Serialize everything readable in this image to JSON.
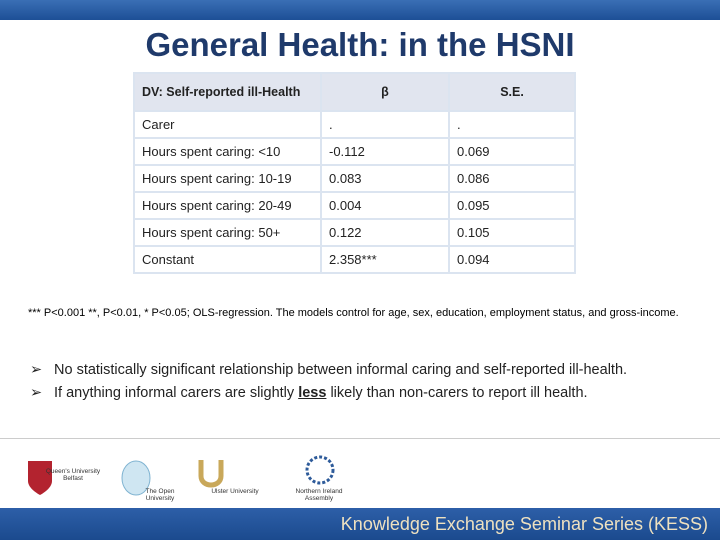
{
  "header": {
    "title": "General Health: in the HSNI"
  },
  "table": {
    "columns": [
      "DV: Self-reported ill-Health",
      "β",
      "S.E."
    ],
    "rows": [
      [
        "Carer",
        ".",
        "."
      ],
      [
        "Hours spent caring: <10",
        "-0.112",
        "0.069"
      ],
      [
        "Hours spent caring: 10-19",
        "0.083",
        "0.086"
      ],
      [
        "Hours spent caring: 20-49",
        "0.004",
        "0.095"
      ],
      [
        "Hours spent caring: 50+",
        "0.122",
        "0.105"
      ],
      [
        "Constant",
        "2.358***",
        "0.094"
      ]
    ]
  },
  "footnote": "*** P<0.001 **, P<0.01, * P<0.05; OLS-regression. The models control for age, sex, education, employment status, and gross-income.",
  "bullets": [
    {
      "parts": [
        "No statistically significant relationship between informal caring and self-reported ill-health."
      ]
    },
    {
      "parts": [
        "If anything informal carers are slightly ",
        "less",
        " likely than non-carers to report ill health."
      ]
    }
  ],
  "logos": [
    "Queen's University Belfast",
    "The Open University",
    "Ulster University",
    "Northern Ireland Assembly"
  ],
  "footer": "Knowledge Exchange Seminar Series (KESS)"
}
